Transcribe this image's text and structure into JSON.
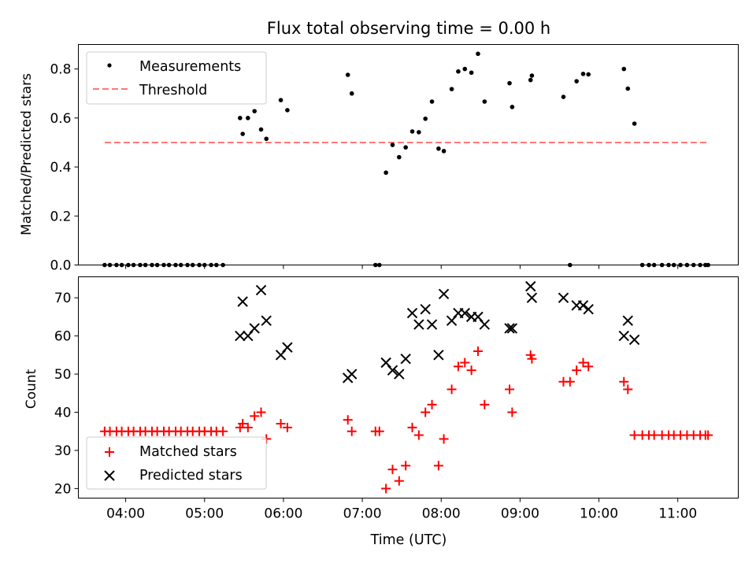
{
  "chart_data": [
    {
      "type": "scatter",
      "title": "Flux total observing time = 0.00 h",
      "xlabel": "",
      "ylabel": "Matched/Predicted stars",
      "ylim": [
        0,
        0.9
      ],
      "yticks": [
        0.0,
        0.2,
        0.4,
        0.6,
        0.8
      ],
      "yticklabels": [
        "0.0",
        "0.2",
        "0.4",
        "0.6",
        "0.8"
      ],
      "xticks": [
        "04:00",
        "05:00",
        "06:00",
        "07:00",
        "08:00",
        "09:00",
        "10:00",
        "11:00"
      ],
      "xlim": [
        "03:24",
        "11:46"
      ],
      "grid": false,
      "legend": {
        "location": "upper left",
        "entries": [
          "Measurements",
          "Threshold"
        ]
      },
      "series": [
        {
          "name": "Measurements",
          "marker": "dot",
          "color": "#000000",
          "points": [
            [
              "03:44",
              0.0
            ],
            [
              "03:48",
              0.0
            ],
            [
              "03:53",
              0.0
            ],
            [
              "03:57",
              0.0
            ],
            [
              "04:02",
              0.0
            ],
            [
              "04:06",
              0.0
            ],
            [
              "04:11",
              0.0
            ],
            [
              "04:15",
              0.0
            ],
            [
              "04:20",
              0.0
            ],
            [
              "04:24",
              0.0
            ],
            [
              "04:29",
              0.0
            ],
            [
              "04:33",
              0.0
            ],
            [
              "04:38",
              0.0
            ],
            [
              "04:42",
              0.0
            ],
            [
              "04:47",
              0.0
            ],
            [
              "04:51",
              0.0
            ],
            [
              "04:56",
              0.0
            ],
            [
              "05:00",
              0.0
            ],
            [
              "05:05",
              0.0
            ],
            [
              "05:09",
              0.0
            ],
            [
              "05:14",
              0.0
            ],
            [
              "05:27",
              0.6
            ],
            [
              "05:29",
              0.535
            ],
            [
              "05:33",
              0.6
            ],
            [
              "05:38",
              0.628
            ],
            [
              "05:43",
              0.553
            ],
            [
              "05:47",
              0.515
            ],
            [
              "05:58",
              0.673
            ],
            [
              "06:03",
              0.632
            ],
            [
              "06:49",
              0.776
            ],
            [
              "06:52",
              0.7
            ],
            [
              "07:10",
              0.0
            ],
            [
              "07:13",
              0.0
            ],
            [
              "07:18",
              0.377
            ],
            [
              "07:23",
              0.49
            ],
            [
              "07:28",
              0.44
            ],
            [
              "07:33",
              0.48
            ],
            [
              "07:38",
              0.545
            ],
            [
              "07:43",
              0.542
            ],
            [
              "07:48",
              0.597
            ],
            [
              "07:53",
              0.667
            ],
            [
              "07:58",
              0.475
            ],
            [
              "08:02",
              0.465
            ],
            [
              "08:08",
              0.718
            ],
            [
              "08:13",
              0.79
            ],
            [
              "08:18",
              0.8
            ],
            [
              "08:23",
              0.785
            ],
            [
              "08:28",
              0.862
            ],
            [
              "08:33",
              0.667
            ],
            [
              "08:52",
              0.742
            ],
            [
              "08:54",
              0.645
            ],
            [
              "09:08",
              0.755
            ],
            [
              "09:09",
              0.773
            ],
            [
              "09:33",
              0.686
            ],
            [
              "09:38",
              0.0
            ],
            [
              "09:43",
              0.75
            ],
            [
              "09:48",
              0.78
            ],
            [
              "09:52",
              0.778
            ],
            [
              "10:19",
              0.8
            ],
            [
              "10:22",
              0.72
            ],
            [
              "10:27",
              0.577
            ],
            [
              "10:33",
              0.0
            ],
            [
              "10:38",
              0.0
            ],
            [
              "10:42",
              0.0
            ],
            [
              "10:48",
              0.0
            ],
            [
              "10:53",
              0.0
            ],
            [
              "10:57",
              0.0
            ],
            [
              "11:02",
              0.0
            ],
            [
              "11:07",
              0.0
            ],
            [
              "11:12",
              0.0
            ],
            [
              "11:17",
              0.0
            ],
            [
              "11:21",
              0.0
            ],
            [
              "11:23",
              0.0
            ]
          ]
        },
        {
          "name": "Threshold",
          "style": "dashed",
          "color": "#ff7777",
          "points": [
            [
              "03:44",
              0.5
            ],
            [
              "11:23",
              0.5
            ]
          ]
        }
      ]
    },
    {
      "type": "scatter",
      "title": "",
      "xlabel": "Time (UTC)",
      "ylabel": "Count",
      "ylim": [
        17.5,
        75.5
      ],
      "yticks": [
        20,
        30,
        40,
        50,
        60,
        70
      ],
      "yticklabels": [
        "20",
        "30",
        "40",
        "50",
        "60",
        "70"
      ],
      "xticks": [
        "04:00",
        "05:00",
        "06:00",
        "07:00",
        "08:00",
        "09:00",
        "10:00",
        "11:00"
      ],
      "xticklabels": [
        "04:00",
        "05:00",
        "06:00",
        "07:00",
        "08:00",
        "09:00",
        "10:00",
        "11:00"
      ],
      "xlim": [
        "03:24",
        "11:46"
      ],
      "grid": false,
      "legend": {
        "location": "lower left",
        "entries": [
          "Matched stars",
          "Predicted stars"
        ]
      },
      "series": [
        {
          "name": "Matched stars",
          "marker": "plus",
          "color": "#ff0000",
          "points": [
            [
              "03:44",
              35
            ],
            [
              "03:48",
              35
            ],
            [
              "03:53",
              35
            ],
            [
              "03:57",
              35
            ],
            [
              "04:02",
              35
            ],
            [
              "04:06",
              35
            ],
            [
              "04:11",
              35
            ],
            [
              "04:15",
              35
            ],
            [
              "04:20",
              35
            ],
            [
              "04:24",
              35
            ],
            [
              "04:29",
              35
            ],
            [
              "04:33",
              35
            ],
            [
              "04:38",
              35
            ],
            [
              "04:42",
              35
            ],
            [
              "04:47",
              35
            ],
            [
              "04:51",
              35
            ],
            [
              "04:56",
              35
            ],
            [
              "05:00",
              35
            ],
            [
              "05:05",
              35
            ],
            [
              "05:09",
              35
            ],
            [
              "05:14",
              35
            ],
            [
              "05:27",
              36
            ],
            [
              "05:29",
              37
            ],
            [
              "05:33",
              36
            ],
            [
              "05:38",
              39
            ],
            [
              "05:43",
              40
            ],
            [
              "05:47",
              33
            ],
            [
              "05:58",
              37
            ],
            [
              "06:03",
              36
            ],
            [
              "06:49",
              38
            ],
            [
              "06:52",
              35
            ],
            [
              "07:10",
              35
            ],
            [
              "07:13",
              35
            ],
            [
              "07:18",
              20
            ],
            [
              "07:23",
              25
            ],
            [
              "07:28",
              22
            ],
            [
              "07:33",
              26
            ],
            [
              "07:38",
              36
            ],
            [
              "07:43",
              34
            ],
            [
              "07:48",
              40
            ],
            [
              "07:53",
              42
            ],
            [
              "07:58",
              26
            ],
            [
              "08:02",
              33
            ],
            [
              "08:08",
              46
            ],
            [
              "08:13",
              52
            ],
            [
              "08:18",
              53
            ],
            [
              "08:23",
              51
            ],
            [
              "08:28",
              56
            ],
            [
              "08:33",
              42
            ],
            [
              "08:52",
              46
            ],
            [
              "08:54",
              40
            ],
            [
              "09:08",
              55
            ],
            [
              "09:09",
              54
            ],
            [
              "09:33",
              48
            ],
            [
              "09:38",
              48
            ],
            [
              "09:43",
              51
            ],
            [
              "09:48",
              53
            ],
            [
              "09:52",
              52
            ],
            [
              "10:19",
              48
            ],
            [
              "10:22",
              46
            ],
            [
              "10:27",
              34
            ],
            [
              "10:33",
              34
            ],
            [
              "10:38",
              34
            ],
            [
              "10:42",
              34
            ],
            [
              "10:48",
              34
            ],
            [
              "10:53",
              34
            ],
            [
              "10:57",
              34
            ],
            [
              "11:02",
              34
            ],
            [
              "11:07",
              34
            ],
            [
              "11:12",
              34
            ],
            [
              "11:17",
              34
            ],
            [
              "11:21",
              34
            ],
            [
              "11:23",
              34
            ]
          ]
        },
        {
          "name": "Predicted stars",
          "marker": "x",
          "color": "#000000",
          "points": [
            [
              "05:27",
              60
            ],
            [
              "05:29",
              69
            ],
            [
              "05:33",
              60
            ],
            [
              "05:38",
              62
            ],
            [
              "05:43",
              72
            ],
            [
              "05:47",
              64
            ],
            [
              "05:58",
              55
            ],
            [
              "06:03",
              57
            ],
            [
              "06:49",
              49
            ],
            [
              "06:52",
              50
            ],
            [
              "07:18",
              53
            ],
            [
              "07:23",
              51
            ],
            [
              "07:28",
              50
            ],
            [
              "07:33",
              54
            ],
            [
              "07:38",
              66
            ],
            [
              "07:43",
              63
            ],
            [
              "07:48",
              67
            ],
            [
              "07:53",
              63
            ],
            [
              "07:58",
              55
            ],
            [
              "08:02",
              71
            ],
            [
              "08:08",
              64
            ],
            [
              "08:13",
              66
            ],
            [
              "08:18",
              66
            ],
            [
              "08:23",
              65
            ],
            [
              "08:28",
              65
            ],
            [
              "08:33",
              63
            ],
            [
              "08:52",
              62
            ],
            [
              "08:54",
              62
            ],
            [
              "09:08",
              73
            ],
            [
              "09:09",
              70
            ],
            [
              "09:33",
              70
            ],
            [
              "09:43",
              68
            ],
            [
              "09:48",
              68
            ],
            [
              "09:52",
              67
            ],
            [
              "10:19",
              60
            ],
            [
              "10:22",
              64
            ],
            [
              "10:27",
              59
            ]
          ]
        }
      ]
    }
  ]
}
